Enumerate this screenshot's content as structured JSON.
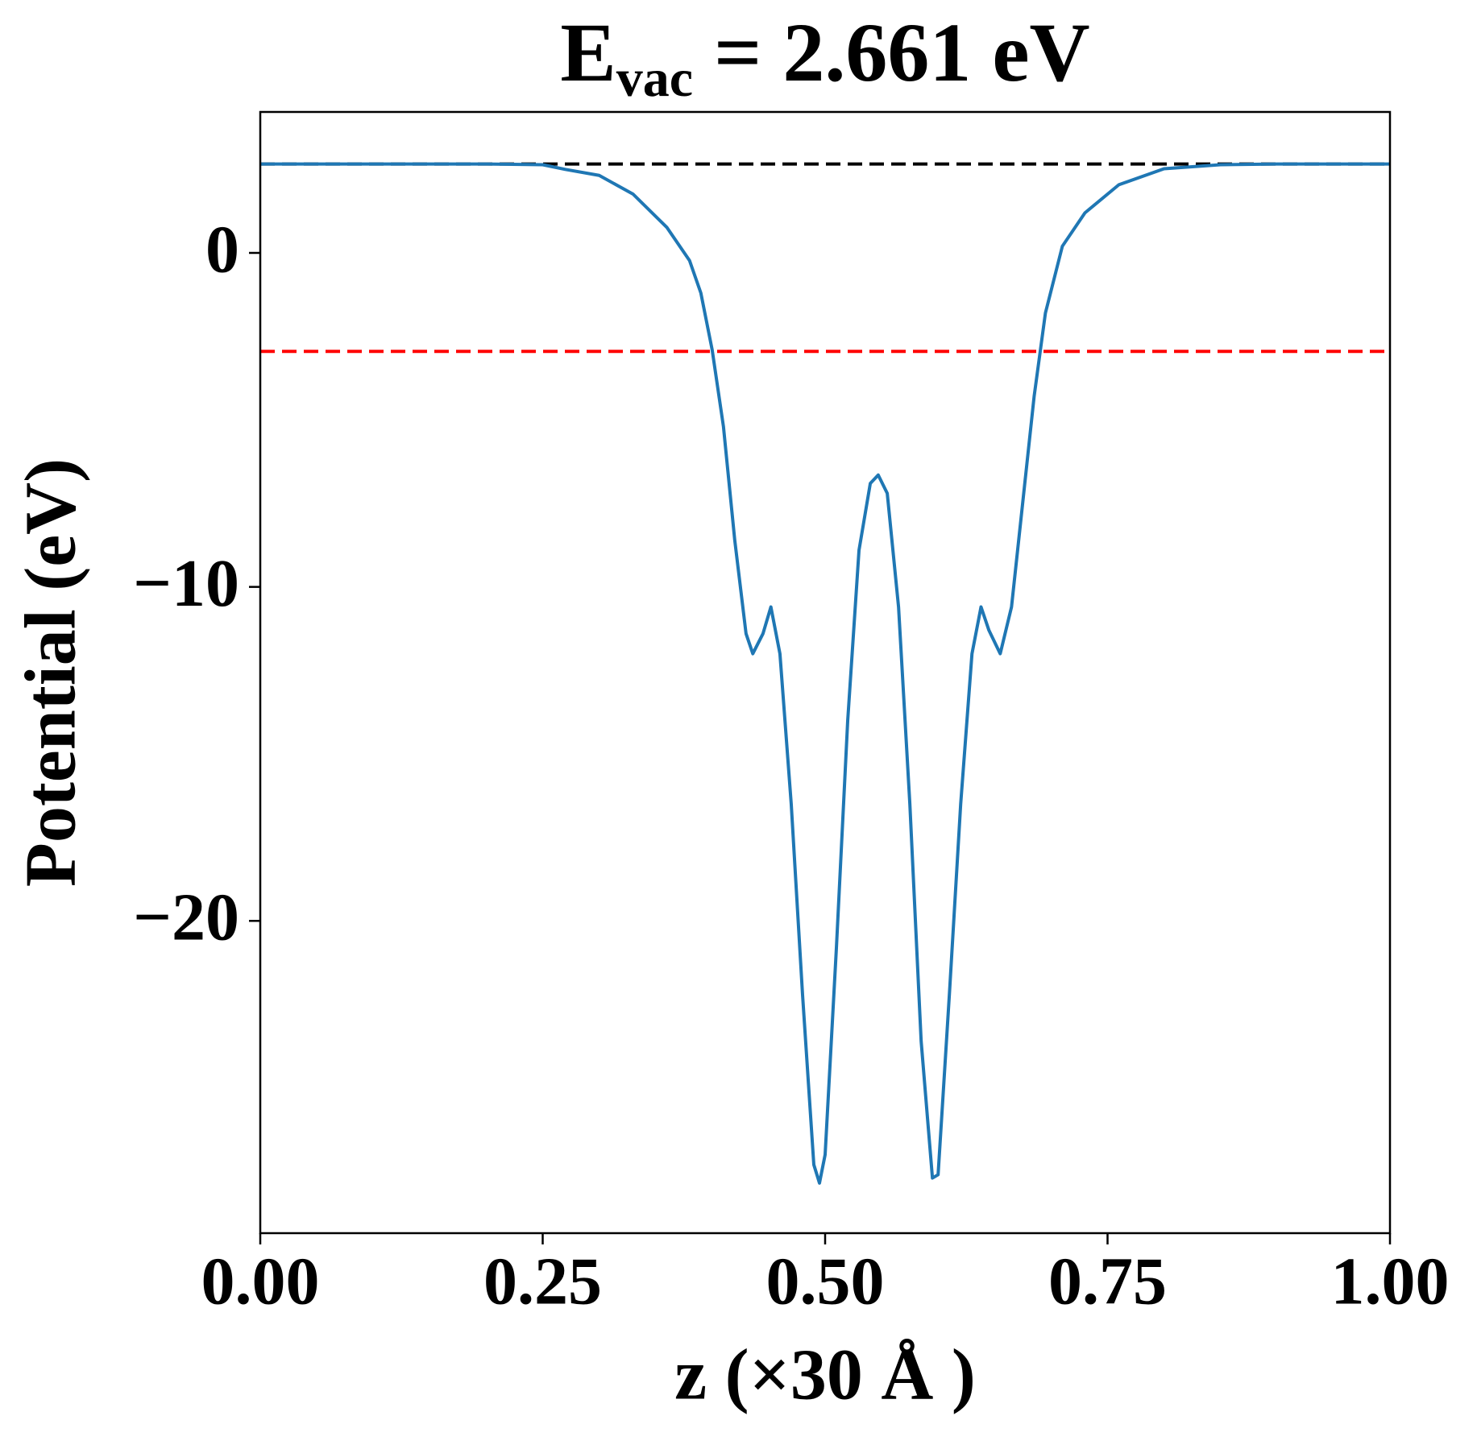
{
  "chart_data": {
    "type": "line",
    "title": {
      "main": "E",
      "subscript": "vac",
      "rest": " = 2.661 eV"
    },
    "x_label": "z (×30 Å )",
    "y_label": "Potential (eV)",
    "xlim": [
      0,
      1
    ],
    "ylim": [
      -29.35,
      4.22
    ],
    "xticks": [
      {
        "value": 0,
        "label": "0.00"
      },
      {
        "value": 0.25,
        "label": "0.25"
      },
      {
        "value": 0.5,
        "label": "0.50"
      },
      {
        "value": 0.75,
        "label": "0.75"
      },
      {
        "value": 1,
        "label": "1.00"
      }
    ],
    "yticks": [
      {
        "value": -20,
        "label": "−20"
      },
      {
        "value": -10,
        "label": "−10"
      },
      0
    ],
    "hlines": [
      {
        "value": 2.661,
        "color": "#000000"
      },
      {
        "value": -2.95,
        "color": "#ff0000"
      }
    ],
    "series": [
      {
        "color": "#1f77b4",
        "x": [
          0,
          0.05,
          0.1,
          0.15,
          0.2,
          0.25,
          0.27,
          0.3,
          0.33,
          0.36,
          0.38,
          0.39,
          0.4,
          0.41,
          0.42,
          0.43,
          0.436,
          0.445,
          0.452,
          0.46,
          0.47,
          0.48,
          0.49,
          0.495,
          0.5,
          0.51,
          0.52,
          0.53,
          0.54,
          0.547,
          0.555,
          0.565,
          0.575,
          0.585,
          0.595,
          0.6,
          0.61,
          0.62,
          0.63,
          0.638,
          0.645,
          0.655,
          0.665,
          0.675,
          0.685,
          0.695,
          0.71,
          0.73,
          0.76,
          0.8,
          0.85,
          0.9,
          0.95,
          1
        ],
        "values": [
          2.661,
          2.661,
          2.661,
          2.661,
          2.661,
          2.64,
          2.5,
          2.32,
          1.76,
          0.76,
          -0.23,
          -1.2,
          -2.9,
          -5.2,
          -8.6,
          -11.4,
          -12.0,
          -11.4,
          -10.6,
          -12.0,
          -16.5,
          -22.2,
          -27.3,
          -27.85,
          -27.0,
          -20.8,
          -14.0,
          -8.9,
          -6.9,
          -6.65,
          -7.2,
          -10.6,
          -16.5,
          -23.6,
          -27.7,
          -27.6,
          -22.2,
          -16.5,
          -12.0,
          -10.6,
          -11.3,
          -12.0,
          -10.6,
          -7.45,
          -4.3,
          -1.8,
          0.2,
          1.2,
          2.04,
          2.52,
          2.64,
          2.661,
          2.661,
          2.661
        ]
      }
    ]
  }
}
